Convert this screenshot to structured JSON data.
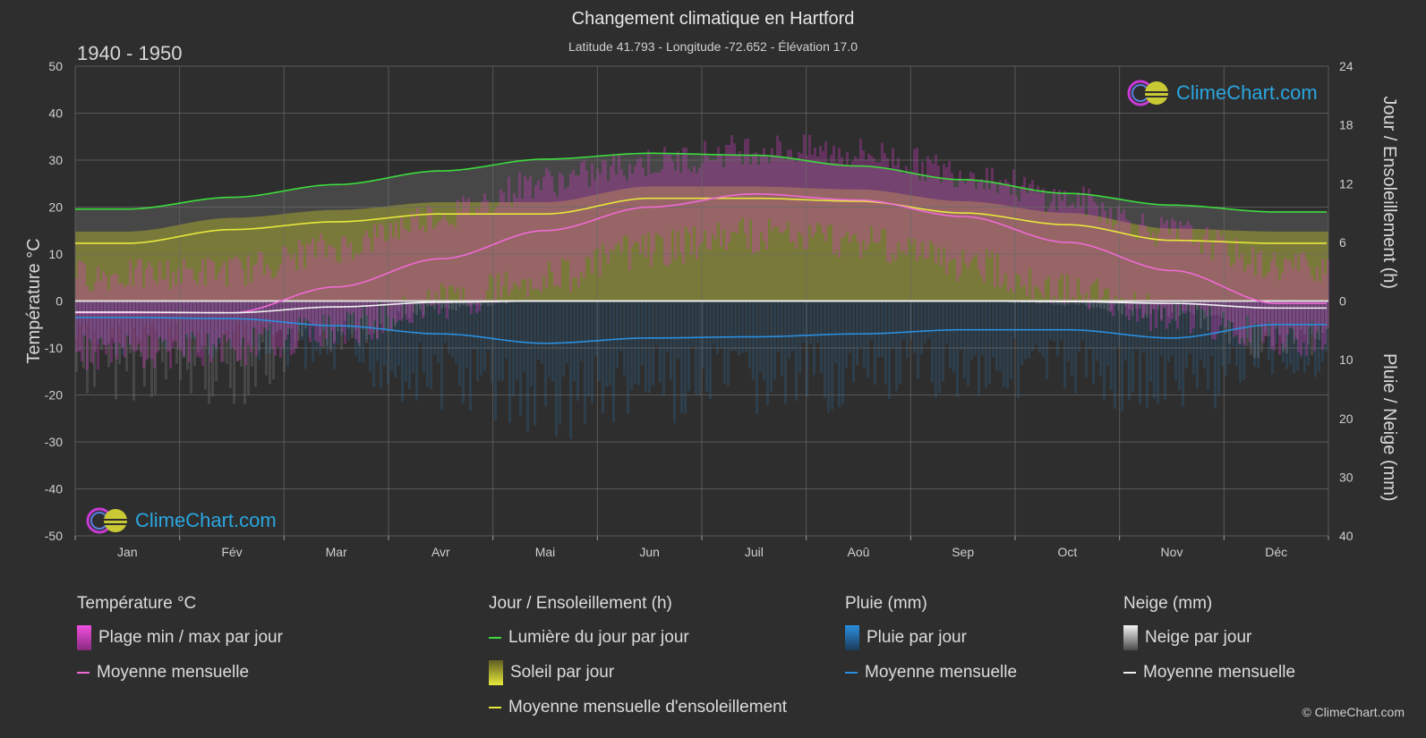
{
  "header": {
    "title": "Changement climatique en Hartford",
    "subtitle": "Latitude 41.793 - Longitude -72.652 - Élévation 17.0",
    "period": "1940 - 1950"
  },
  "chart_data": {
    "type": "area",
    "categories": [
      "Jan",
      "Fév",
      "Mar",
      "Avr",
      "Mai",
      "Jun",
      "Juil",
      "Aoû",
      "Sep",
      "Oct",
      "Nov",
      "Déc"
    ],
    "y_left": {
      "label": "Température °C",
      "range": [
        -50,
        50
      ],
      "ticks": [
        50,
        40,
        30,
        20,
        10,
        0,
        -10,
        -20,
        -30,
        -40,
        -50
      ]
    },
    "y_right_top": {
      "label": "Jour / Ensoleillement (h)",
      "range": [
        0,
        24
      ],
      "ticks": [
        24,
        18,
        12,
        6,
        0
      ]
    },
    "y_right_bottom": {
      "label": "Pluie / Neige (mm)",
      "range": [
        0,
        40
      ],
      "ticks": [
        0,
        10,
        20,
        30,
        40
      ]
    },
    "grid": true,
    "series": [
      {
        "name": "Lumière du jour par jour",
        "unit": "h",
        "color": "#3ddc3d",
        "values": [
          9.4,
          10.6,
          11.9,
          13.3,
          14.5,
          15.1,
          14.9,
          13.8,
          12.4,
          11.0,
          9.8,
          9.1
        ]
      },
      {
        "name": "Moyenne mensuelle d'ensoleillement",
        "unit": "h",
        "color": "#e8e83a",
        "values": [
          5.9,
          7.3,
          8.1,
          8.9,
          8.9,
          10.5,
          10.5,
          10.2,
          9.0,
          7.8,
          6.2,
          5.9
        ]
      },
      {
        "name": "Température moyenne mensuelle",
        "unit": "°C",
        "color": "#f06ad6",
        "values": [
          -2.5,
          -2.5,
          3.0,
          9.0,
          15.0,
          20.0,
          22.8,
          21.5,
          18.0,
          12.5,
          6.5,
          -0.5
        ]
      },
      {
        "name": "Pluie moyenne mensuelle",
        "unit": "mm",
        "color": "#2a8fe0",
        "values": [
          2.8,
          3.0,
          4.2,
          5.6,
          7.2,
          6.3,
          6.1,
          5.6,
          4.9,
          4.9,
          6.3,
          4.0
        ]
      },
      {
        "name": "Neige moyenne mensuelle",
        "unit": "mm",
        "color": "#f0f0f0",
        "values": [
          1.9,
          2.0,
          1.0,
          0.2,
          0.0,
          0.0,
          0.0,
          0.0,
          0.0,
          0.1,
          0.4,
          1.2
        ]
      },
      {
        "name": "Plage min / max par jour (min)",
        "unit": "°C",
        "values": [
          -7,
          -6,
          -2,
          4,
          9,
          15,
          18,
          17,
          12,
          6,
          1,
          -4
        ]
      },
      {
        "name": "Plage min / max par jour (max)",
        "unit": "°C",
        "values": [
          2,
          3,
          8,
          15,
          22,
          26,
          29,
          28,
          24,
          18,
          11,
          4
        ]
      }
    ]
  },
  "legend": {
    "temperature": {
      "title": "Température °C",
      "range": "Plage min / max par jour",
      "mean": "Moyenne mensuelle"
    },
    "sun": {
      "title": "Jour / Ensoleillement (h)",
      "daylight": "Lumière du jour par jour",
      "sunshine": "Soleil par jour",
      "sun_mean": "Moyenne mensuelle d'ensoleillement"
    },
    "rain": {
      "title": "Pluie (mm)",
      "daily": "Pluie par jour",
      "mean": "Moyenne mensuelle"
    },
    "snow": {
      "title": "Neige (mm)",
      "daily": "Neige par jour",
      "mean": "Moyenne mensuelle"
    }
  },
  "brand": {
    "name": "ClimeChart.com",
    "copyright": "© ClimeChart.com"
  },
  "colors": {
    "background": "#2e2e2e",
    "temp_range": "#d63cc4",
    "sunshine": "#b5b52a",
    "rain": "#2a8fe0",
    "snow": "#cfcfcf"
  }
}
